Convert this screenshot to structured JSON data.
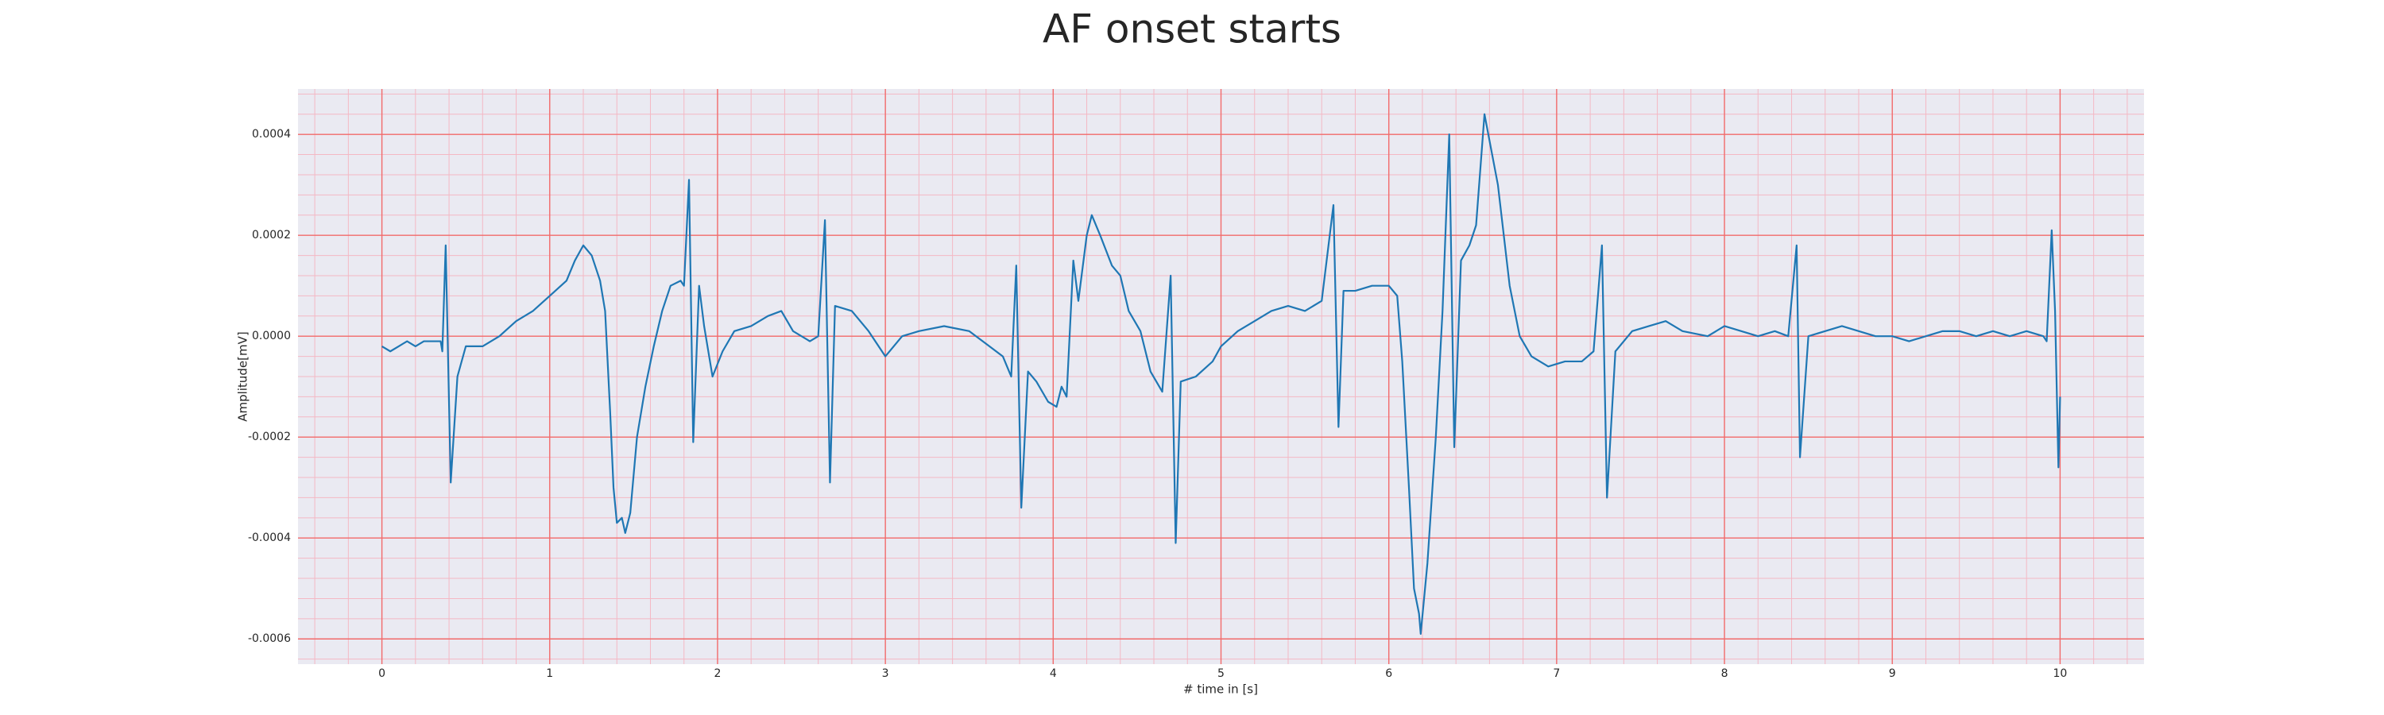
{
  "chart_data": {
    "type": "line",
    "title": "AF onset starts",
    "xlabel": "# time in [s]",
    "ylabel": "Amplitude[mV]",
    "color": "#1f77b4",
    "grid": true,
    "minor_grid": true,
    "xlim": [
      -0.5,
      10.5
    ],
    "xticks": [
      0,
      1,
      2,
      3,
      4,
      5,
      6,
      7,
      8,
      9,
      10
    ],
    "ylim": [
      -0.00065,
      0.00049
    ],
    "yticks": [
      {
        "value": -0.0006,
        "label": "-0.0006"
      },
      {
        "value": -0.0004,
        "label": "-0.0004"
      },
      -0.0002,
      {
        "value": 0,
        "label": "0.0000"
      },
      0.0002,
      0.0004
    ],
    "x": [
      0,
      0.05,
      0.1,
      0.15,
      0.2,
      0.25,
      0.3,
      0.35,
      0.36,
      0.38,
      0.41,
      0.45,
      0.5,
      0.6,
      0.7,
      0.8,
      0.9,
      1.0,
      1.1,
      1.15,
      1.2,
      1.25,
      1.3,
      1.33,
      1.36,
      1.38,
      1.4,
      1.43,
      1.45,
      1.48,
      1.52,
      1.57,
      1.62,
      1.67,
      1.72,
      1.78,
      1.8,
      1.83,
      1.855,
      1.89,
      1.92,
      1.97,
      2.03,
      2.1,
      2.2,
      2.3,
      2.38,
      2.45,
      2.55,
      2.6,
      2.64,
      2.67,
      2.7,
      2.8,
      2.9,
      3.0,
      3.1,
      3.2,
      3.35,
      3.5,
      3.62,
      3.7,
      3.75,
      3.78,
      3.81,
      3.85,
      3.9,
      3.97,
      4.02,
      4.05,
      4.08,
      4.12,
      4.15,
      4.2,
      4.23,
      4.28,
      4.35,
      4.4,
      4.45,
      4.52,
      4.58,
      4.65,
      4.7,
      4.73,
      4.76,
      4.85,
      4.95,
      5.0,
      5.1,
      5.2,
      5.3,
      5.4,
      5.5,
      5.6,
      5.67,
      5.7,
      5.73,
      5.8,
      5.9,
      6.0,
      6.05,
      6.08,
      6.12,
      6.15,
      6.18,
      6.19,
      6.23,
      6.28,
      6.32,
      6.36,
      6.39,
      6.43,
      6.48,
      6.52,
      6.57,
      6.65,
      6.72,
      6.78,
      6.85,
      6.95,
      7.05,
      7.15,
      7.22,
      7.27,
      7.3,
      7.35,
      7.45,
      7.55,
      7.65,
      7.75,
      7.9,
      8.0,
      8.1,
      8.2,
      8.3,
      8.38,
      8.43,
      8.45,
      8.5,
      8.6,
      8.7,
      8.8,
      8.9,
      9.0,
      9.1,
      9.2,
      9.3,
      9.4,
      9.5,
      9.6,
      9.7,
      9.8,
      9.9,
      9.92,
      9.95,
      9.97,
      9.99,
      10.0
    ],
    "values": [
      -2e-05,
      -3e-05,
      -2e-05,
      -1e-05,
      -2e-05,
      -1e-05,
      -1e-05,
      -1e-05,
      -3e-05,
      0.00018,
      -0.00029,
      -8e-05,
      -2e-05,
      -2e-05,
      0,
      3e-05,
      5e-05,
      8e-05,
      0.00011,
      0.00015,
      0.00018,
      0.00016,
      0.00011,
      5e-05,
      -0.00015,
      -0.0003,
      -0.00037,
      -0.00036,
      -0.00039,
      -0.00035,
      -0.0002,
      -0.0001,
      -2e-05,
      5e-05,
      0.0001,
      0.00011,
      0.0001,
      0.00031,
      -0.00021,
      0.0001,
      2e-05,
      -8e-05,
      -3e-05,
      1e-05,
      2e-05,
      4e-05,
      5e-05,
      1e-05,
      -1e-05,
      0,
      0.00023,
      -0.00029,
      6e-05,
      5e-05,
      1e-05,
      -4e-05,
      0,
      1e-05,
      2e-05,
      1e-05,
      -2e-05,
      -4e-05,
      -8e-05,
      0.00014,
      -0.00034,
      -7e-05,
      -9e-05,
      -0.00013,
      -0.00014,
      -0.0001,
      -0.00012,
      0.00015,
      7e-05,
      0.0002,
      0.00024,
      0.0002,
      0.00014,
      0.00012,
      5e-05,
      1e-05,
      -7e-05,
      -0.00011,
      0.00012,
      -0.00041,
      -9e-05,
      -8e-05,
      -5e-05,
      -2e-05,
      1e-05,
      3e-05,
      5e-05,
      6e-05,
      5e-05,
      7e-05,
      0.00026,
      -0.00018,
      9e-05,
      9e-05,
      0.0001,
      0.0001,
      8e-05,
      -5e-05,
      -0.0003,
      -0.0005,
      -0.00055,
      -0.00059,
      -0.00045,
      -0.0002,
      5e-05,
      0.0004,
      -0.00022,
      0.00015,
      0.00018,
      0.00022,
      0.00044,
      0.0003,
      0.0001,
      0,
      -4e-05,
      -6e-05,
      -5e-05,
      -5e-05,
      -3e-05,
      0.00018,
      -0.00032,
      -3e-05,
      1e-05,
      2e-05,
      3e-05,
      1e-05,
      0,
      2e-05,
      1e-05,
      0,
      1e-05,
      0,
      0.00018,
      -0.00024,
      0,
      1e-05,
      2e-05,
      1e-05,
      0,
      0,
      -1e-05,
      0,
      1e-05,
      1e-05,
      0,
      1e-05,
      0,
      1e-05,
      0,
      -1e-05,
      0.00021,
      5e-05,
      -0.00026,
      -0.00012
    ]
  }
}
